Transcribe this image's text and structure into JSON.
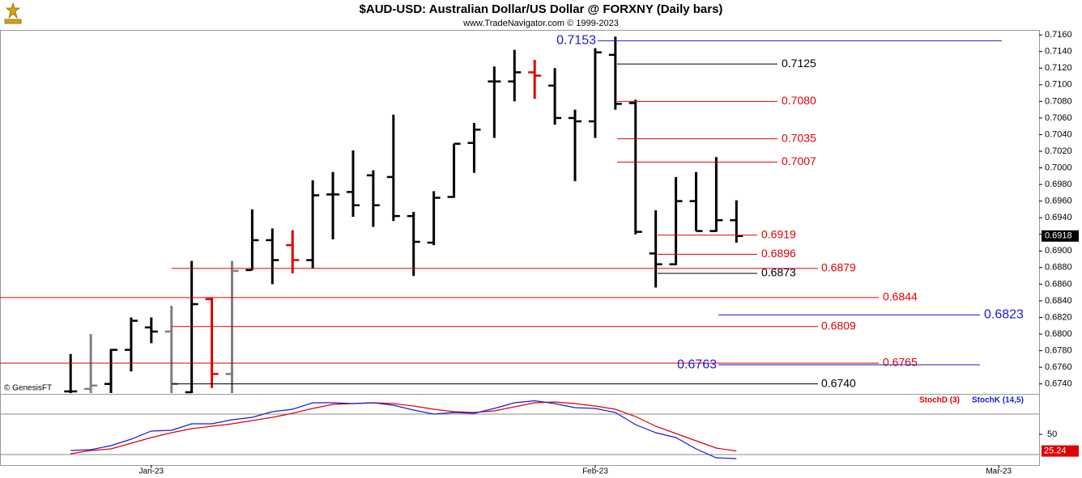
{
  "chart_data": [
    {
      "type": "ohlc",
      "title": "$AUD-USD:  Australian Dollar/US Dollar @ FORXNY  (Daily bars)",
      "subtitle": "www.TradeNavigator.com © 1999-2023",
      "annotation": "© GenesisFT",
      "x": [
        0,
        1,
        2,
        3,
        4,
        5,
        6,
        7,
        8,
        9,
        10,
        11,
        12,
        13,
        14,
        15,
        16,
        17,
        18,
        19,
        20,
        21,
        22,
        23,
        24,
        25,
        26,
        27,
        28,
        29,
        30,
        31,
        32,
        33
      ],
      "open": [
        0.6731,
        0.6734,
        0.674,
        0.6781,
        0.6808,
        0.6803,
        0.673,
        0.6842,
        0.6752,
        0.6877,
        0.6913,
        0.6907,
        0.6889,
        0.6968,
        0.6971,
        0.6991,
        0.6989,
        0.6942,
        0.691,
        0.6965,
        0.703,
        0.7104,
        0.7104,
        0.7115,
        0.7099,
        0.706,
        0.7056,
        0.7136,
        0.7078,
        0.6897,
        0.6884,
        0.696,
        0.6924,
        0.6937
      ],
      "high": [
        0.6776,
        0.68,
        0.6782,
        0.682,
        0.682,
        0.6834,
        0.6888,
        0.6844,
        0.6888,
        0.695,
        0.6927,
        0.6925,
        0.6985,
        0.6995,
        0.7021,
        0.6997,
        0.7064,
        0.6947,
        0.6972,
        0.7029,
        0.7054,
        0.7122,
        0.7142,
        0.713,
        0.712,
        0.707,
        0.7144,
        0.7158,
        0.7082,
        0.6949,
        0.6989,
        0.6995,
        0.7013,
        0.6961
      ],
      "low": [
        0.6729,
        0.6729,
        0.6729,
        0.6755,
        0.6789,
        0.6729,
        0.6729,
        0.6735,
        0.6729,
        0.6877,
        0.686,
        0.6873,
        0.6879,
        0.6914,
        0.6941,
        0.6929,
        0.6936,
        0.687,
        0.6907,
        0.6964,
        0.6994,
        0.7036,
        0.708,
        0.7083,
        0.7052,
        0.6984,
        0.7036,
        0.707,
        0.692,
        0.6856,
        0.6883,
        0.6924,
        0.6923,
        0.691
      ],
      "close": [
        0.6731,
        0.6738,
        0.6781,
        0.6816,
        0.6803,
        0.674,
        0.6836,
        0.6752,
        0.6876,
        0.6913,
        0.6889,
        0.6889,
        0.6967,
        0.6968,
        0.6955,
        0.6955,
        0.6942,
        0.6911,
        0.6964,
        0.7029,
        0.7046,
        0.7104,
        0.7115,
        0.7111,
        0.706,
        0.7056,
        0.7139,
        0.7077,
        0.6923,
        0.6884,
        0.696,
        0.6924,
        0.6937,
        0.6918
      ],
      "bar_colors": [
        "#000000",
        "#808080",
        "#000000",
        "#000000",
        "#000000",
        "#808080",
        "#000000",
        "#e00000",
        "#808080",
        "#000000",
        "#000000",
        "#e00000",
        "#000000",
        "#000000",
        "#000000",
        "#000000",
        "#000000",
        "#000000",
        "#000000",
        "#000000",
        "#000000",
        "#000000",
        "#000000",
        "#e00000",
        "#000000",
        "#000000",
        "#000000",
        "#000000",
        "#000000",
        "#000000",
        "#000000",
        "#000000",
        "#000000",
        "#000000"
      ],
      "xlim": [
        -3.5,
        48
      ],
      "xticks": [
        {
          "value": 4,
          "label": "Jan-23"
        },
        {
          "value": 26,
          "label": "Feb-23"
        },
        {
          "value": 46,
          "label": "Mar-23"
        }
      ],
      "ylim": [
        0.6728,
        0.7166
      ],
      "yticks": [
        {
          "value": 0.716,
          "label": "0.7160"
        },
        {
          "value": 0.714,
          "label": "0.7140"
        },
        {
          "value": 0.712,
          "label": "0.7120"
        },
        {
          "value": 0.71,
          "label": "0.7100"
        },
        {
          "value": 0.708,
          "label": "0.7080"
        },
        {
          "value": 0.706,
          "label": "0.7060"
        },
        {
          "value": 0.704,
          "label": "0.7040"
        },
        {
          "value": 0.702,
          "label": "0.7020"
        },
        {
          "value": 0.7,
          "label": "0.7000"
        },
        {
          "value": 0.698,
          "label": "0.6980"
        },
        {
          "value": 0.696,
          "label": "0.6960"
        },
        {
          "value": 0.694,
          "label": "0.6940"
        },
        {
          "value": 0.692,
          "label": "0.6920"
        },
        {
          "value": 0.69,
          "label": "0.6900"
        },
        {
          "value": 0.688,
          "label": "0.6880"
        },
        {
          "value": 0.686,
          "label": "0.6860"
        },
        {
          "value": 0.684,
          "label": "0.6840"
        },
        {
          "value": 0.682,
          "label": "0.6820"
        },
        {
          "value": 0.68,
          "label": "0.6800"
        },
        {
          "value": 0.678,
          "label": "0.6780"
        },
        {
          "value": 0.676,
          "label": "0.6760"
        },
        {
          "value": 0.674,
          "label": "0.6740"
        }
      ],
      "levels": [
        {
          "value": 0.7153,
          "color": "#1a1ad0"
        },
        {
          "value": 0.7125,
          "color": "#000000"
        },
        {
          "value": 0.708,
          "label": "0.7080",
          "color": "#e00000"
        },
        {
          "value": 0.7035,
          "color": "#e00000"
        },
        {
          "value": 0.7007,
          "color": "#e00000"
        },
        {
          "value": 0.6919,
          "color": "#e00000"
        },
        {
          "value": 0.6896,
          "color": "#e00000"
        },
        {
          "value": 0.6873,
          "color": "#000000"
        },
        {
          "value": 0.6879,
          "color": "#e00000"
        },
        {
          "value": 0.6844,
          "color": "#e00000"
        },
        {
          "value": 0.6823,
          "color": "#1a1ad0"
        },
        {
          "value": 0.6809,
          "color": "#e00000"
        },
        {
          "value": 0.6765,
          "color": "#e00000"
        },
        {
          "value": 0.6763,
          "color": "#1a1ad0"
        },
        {
          "value": 0.674,
          "label": "0.6740",
          "color": "#000000"
        }
      ]
    },
    {
      "type": "line",
      "series": [
        {
          "name": "StochD (3)",
          "color": "#e00000",
          "values": [
            21.2,
            26,
            28.4,
            36.8,
            45.2,
            52.4,
            58.4,
            62,
            65.6,
            70.4,
            75.2,
            81.2,
            88.4,
            94.4,
            95.6,
            96.8,
            95.6,
            92,
            87.2,
            83.6,
            82.4,
            84.8,
            90.8,
            96.8,
            98,
            95.6,
            92,
            87.2,
            76.4,
            62,
            51.2,
            40.4,
            29.6,
            25.24
          ]
        },
        {
          "name": "StochK (14,5)",
          "color": "#1a1ad0",
          "values": [
            26,
            27.2,
            33.2,
            42.8,
            54.8,
            56,
            65.6,
            65.6,
            71.6,
            75.2,
            83.6,
            87.2,
            96.8,
            96.8,
            95.6,
            96.8,
            93.2,
            86,
            80,
            82.4,
            81.2,
            88.4,
            96.8,
            99.8,
            95.6,
            89.6,
            88.4,
            82.4,
            64.4,
            52.4,
            45.2,
            28.4,
            15.2,
            14
          ]
        }
      ],
      "ylim": [
        4.4,
        110
      ],
      "yticks": [
        50
      ],
      "hlines": [
        20,
        80
      ]
    }
  ]
}
